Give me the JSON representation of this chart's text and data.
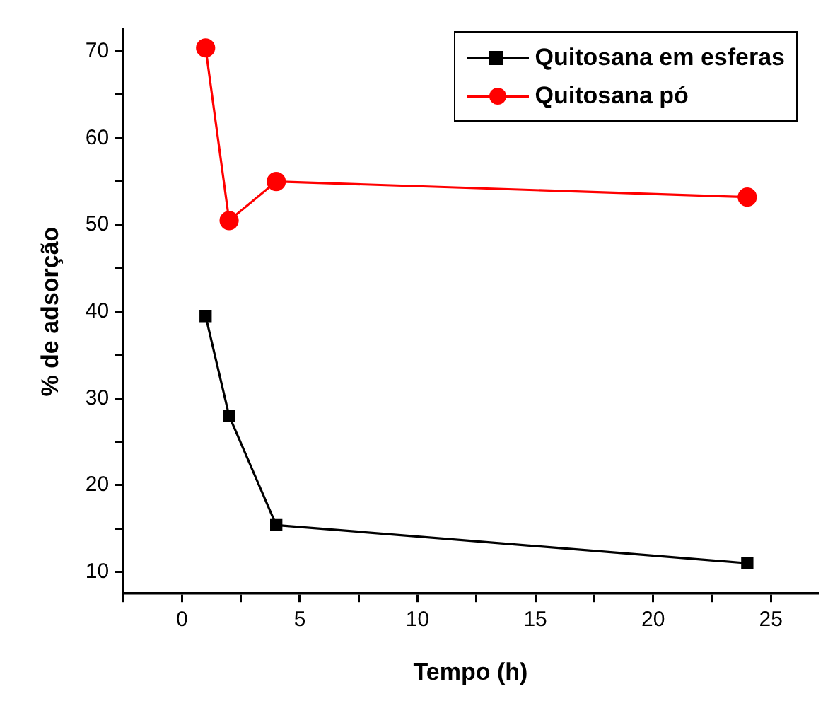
{
  "chart_data": {
    "type": "line",
    "xlabel": "Tempo (h)",
    "ylabel": "% de adsorção",
    "xlim": [
      -2.5,
      27
    ],
    "xticks": [
      {
        "value": -2.5,
        "label": null
      },
      0,
      {
        "value": 2.5,
        "label": null
      },
      5,
      {
        "value": 7.5,
        "label": null
      },
      10,
      {
        "value": 12.5,
        "label": null
      },
      15,
      {
        "value": 17.5,
        "label": null
      },
      20,
      {
        "value": 22.5,
        "label": null
      },
      25
    ],
    "ylim": [
      7.5,
      72.5
    ],
    "yticks": [
      10,
      {
        "value": 15,
        "label": null
      },
      20,
      {
        "value": 25,
        "label": null
      },
      30,
      {
        "value": 35,
        "label": null
      },
      40,
      {
        "value": 45,
        "label": null
      },
      50,
      {
        "value": 55,
        "label": null
      },
      60,
      {
        "value": 65,
        "label": null
      },
      70
    ],
    "grid": false,
    "legend": "top right",
    "series": [
      {
        "name": "Quitosana em esferas",
        "color": "#000000",
        "marker": "square",
        "x": [
          1,
          2,
          4,
          24
        ],
        "values": [
          39.5,
          28.0,
          15.4,
          11.0
        ]
      },
      {
        "name": "Quitosana pó",
        "color": "#ff0000",
        "marker": "circle",
        "x": [
          1,
          2,
          4,
          24
        ],
        "values": [
          70.4,
          50.5,
          55.0,
          53.2
        ]
      }
    ]
  }
}
